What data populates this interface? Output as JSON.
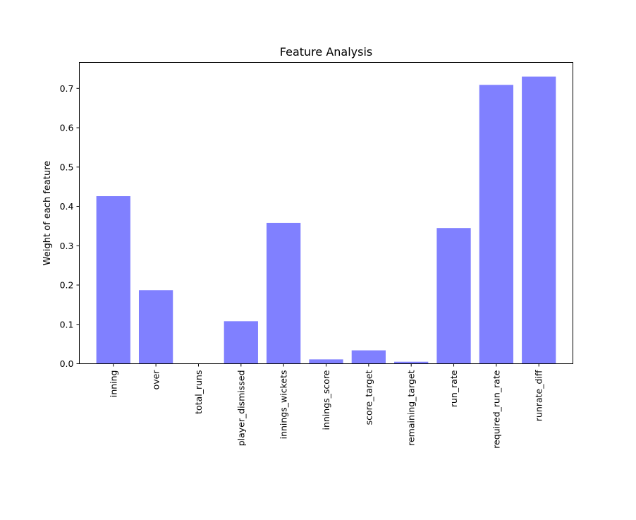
{
  "chart_data": {
    "type": "bar",
    "title": "Feature Analysis",
    "xlabel": "",
    "ylabel": "Weight of each feature",
    "categories": [
      "inning",
      "over",
      "total_runs",
      "player_dismissed",
      "innings_wickets",
      "innings_score",
      "score_target",
      "remaining_target",
      "run_rate",
      "required_run_rate",
      "runrate_diff"
    ],
    "values": [
      0.426,
      0.187,
      0.0,
      0.108,
      0.358,
      0.011,
      0.034,
      0.005,
      0.345,
      0.709,
      0.73
    ],
    "ylim": [
      0,
      0.766
    ],
    "yticks": [
      "0.0",
      "0.1",
      "0.2",
      "0.3",
      "0.4",
      "0.5",
      "0.6",
      "0.7"
    ],
    "bar_color": "#8080ff",
    "grid": false
  }
}
